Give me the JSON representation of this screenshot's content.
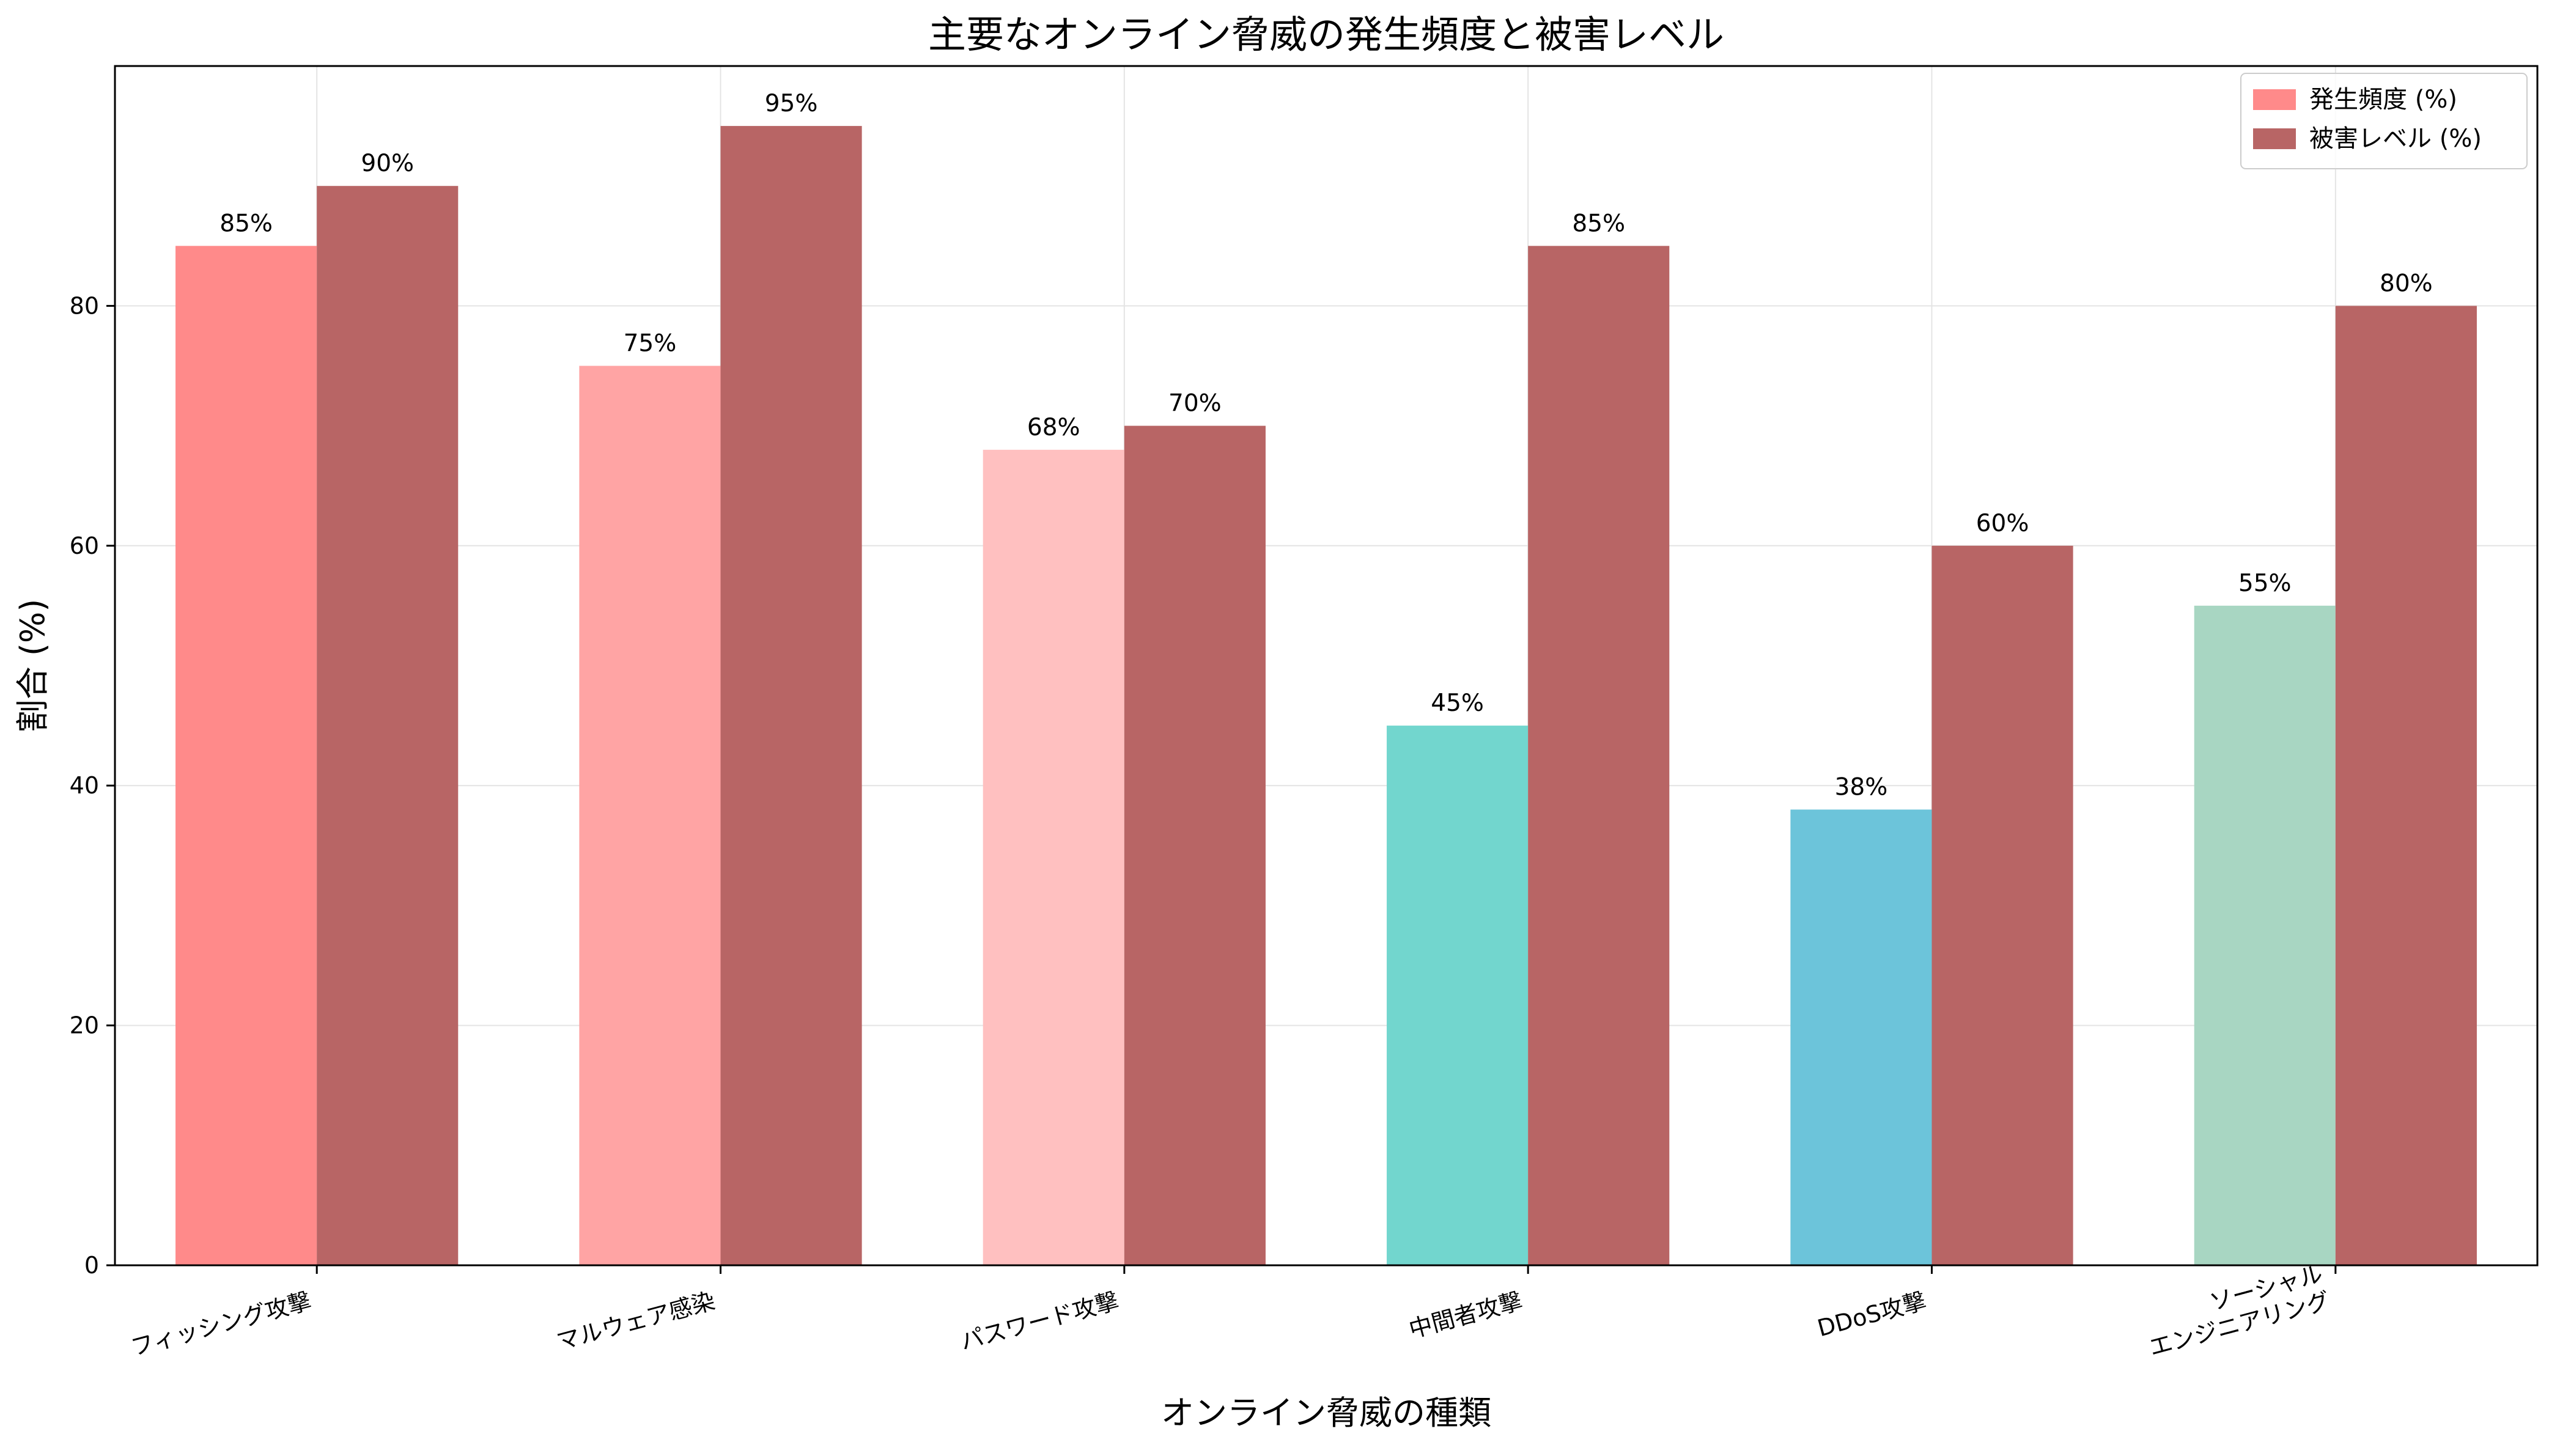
{
  "chart_data": {
    "type": "bar",
    "title": "主要なオンライン脅威の発生頻度と被害レベル",
    "xlabel": "オンライン脅威の種類",
    "ylabel": "割合 (%)",
    "ylim": [
      0,
      100
    ],
    "yticks": [
      0,
      20,
      40,
      60,
      80
    ],
    "grid": true,
    "legend_position": "top-right",
    "categories": [
      [
        "フィッシング攻撃"
      ],
      [
        "マルウェア感染"
      ],
      [
        "パスワード攻撃"
      ],
      [
        "中間者攻撃"
      ],
      [
        "DDoS攻撃"
      ],
      [
        "ソーシャル",
        "エンジニアリング"
      ]
    ],
    "series": [
      {
        "name": "発生頻度 (%)",
        "values": [
          85,
          75,
          68,
          45,
          38,
          55
        ],
        "labels": [
          "85%",
          "75%",
          "68%",
          "45%",
          "38%",
          "55%"
        ],
        "colors": [
          "#FF8A8A",
          "#FFA4A4",
          "#FFC0C0",
          "#72D6CE",
          "#6CC4DA",
          "#A8D6C2"
        ],
        "legend_color": "#FF8A8A"
      },
      {
        "name": "被害レベル (%)",
        "values": [
          90,
          95,
          70,
          85,
          60,
          80
        ],
        "labels": [
          "90%",
          "95%",
          "70%",
          "85%",
          "60%",
          "80%"
        ],
        "colors": [
          "#B86565",
          "#B86565",
          "#B86565",
          "#B86565",
          "#B86565",
          "#B86565"
        ],
        "legend_color": "#B86565"
      }
    ]
  }
}
